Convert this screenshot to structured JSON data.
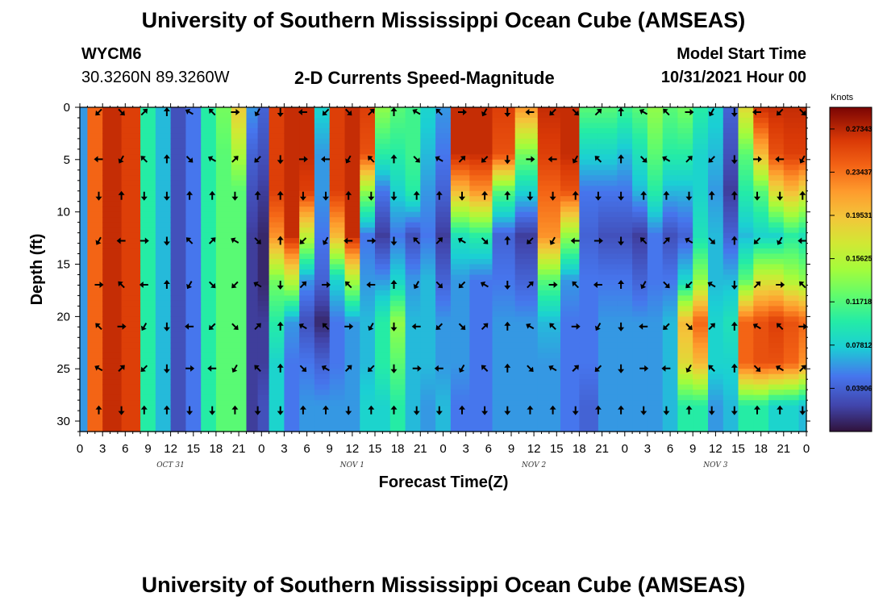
{
  "header": {
    "title": "University of Southern Mississippi Ocean Cube (AMSEAS)",
    "station_id": "WYCM6",
    "location": "30.3260N  89.3260W",
    "chart_title": "2-D Currents Speed-Magnitude",
    "model_start_label": "Model Start Time",
    "model_start_value": "10/31/2021 Hour 00",
    "footer_title": "University of Southern Mississippi Ocean Cube (AMSEAS)"
  },
  "chart_data": {
    "type": "heatmap",
    "title": "2-D Currents Speed-Magnitude",
    "xlabel": "Forecast Time(Z)",
    "ylabel": "Depth (ft)",
    "x_ticks": [
      "0",
      "3",
      "6",
      "9",
      "12",
      "15",
      "18",
      "21",
      "0",
      "3",
      "6",
      "9",
      "12",
      "15",
      "18",
      "21",
      "0",
      "3",
      "6",
      "9",
      "12",
      "15",
      "18",
      "21",
      "0",
      "3",
      "6",
      "9",
      "12",
      "15",
      "18",
      "21",
      "0"
    ],
    "day_labels": [
      "OCT 31",
      "NOV 1",
      "NOV 2",
      "NOV 3"
    ],
    "xlim": [
      0,
      96
    ],
    "y_ticks": [
      0,
      5,
      10,
      15,
      20,
      25,
      30
    ],
    "ylim": [
      0,
      31
    ],
    "colorbar": {
      "label": "Knots",
      "range": [
        0.0,
        0.293
      ],
      "ticks": [
        "0.27343",
        "0.23437",
        "0.19531",
        "0.15625",
        "0.11718",
        "0.07812",
        "0.03906"
      ],
      "tick_values": [
        0.27343,
        0.23437,
        0.19531,
        0.15625,
        0.11718,
        0.07812,
        0.03906
      ]
    },
    "arrow_depths_ft": [
      0,
      4.5,
      8,
      12.3,
      16.5,
      20.5,
      24.5,
      28.5
    ],
    "arrow_hours": [
      2.5,
      5.5,
      8.5,
      11.5,
      14.5,
      17.5,
      20.5,
      23.5,
      26.5,
      29.5,
      32.5,
      35.5,
      38.5,
      41.5,
      44.5,
      47.5,
      50.5,
      53.5,
      56.5,
      59.5,
      62.5,
      65.5,
      68.5,
      71.5,
      74.5,
      77.5,
      80.5,
      83.5,
      86.5,
      89.5,
      92.5,
      95.5
    ],
    "speed_columns": [
      {
        "hour": 0,
        "speeds": [
          0.06,
          0.06,
          0.06,
          0.06,
          0.06,
          0.06,
          0.06,
          0.06
        ]
      },
      {
        "hour": 2,
        "speeds": [
          0.24,
          0.24,
          0.24,
          0.24,
          0.24,
          0.24,
          0.24,
          0.24
        ]
      },
      {
        "hour": 4,
        "speeds": [
          0.27,
          0.27,
          0.27,
          0.27,
          0.27,
          0.27,
          0.27,
          0.27
        ]
      },
      {
        "hour": 7,
        "speeds": [
          0.26,
          0.26,
          0.26,
          0.26,
          0.26,
          0.26,
          0.26,
          0.26
        ]
      },
      {
        "hour": 9,
        "speeds": [
          0.1,
          0.1,
          0.1,
          0.1,
          0.1,
          0.1,
          0.1,
          0.1
        ]
      },
      {
        "hour": 11,
        "speeds": [
          0.07,
          0.07,
          0.07,
          0.07,
          0.07,
          0.07,
          0.07,
          0.07
        ]
      },
      {
        "hour": 13,
        "speeds": [
          0.03,
          0.03,
          0.03,
          0.03,
          0.03,
          0.03,
          0.03,
          0.03
        ]
      },
      {
        "hour": 15,
        "speeds": [
          0.05,
          0.05,
          0.05,
          0.05,
          0.05,
          0.05,
          0.05,
          0.05
        ]
      },
      {
        "hour": 17,
        "speeds": [
          0.1,
          0.1,
          0.1,
          0.1,
          0.1,
          0.1,
          0.1,
          0.1
        ]
      },
      {
        "hour": 19,
        "speeds": [
          0.13,
          0.12,
          0.12,
          0.12,
          0.12,
          0.12,
          0.12,
          0.12
        ]
      },
      {
        "hour": 21,
        "speeds": [
          0.19,
          0.15,
          0.12,
          0.12,
          0.12,
          0.12,
          0.12,
          0.12
        ]
      },
      {
        "hour": 23,
        "speeds": [
          0.06,
          0.04,
          0.03,
          0.02,
          0.02,
          0.02,
          0.02,
          0.02
        ]
      },
      {
        "hour": 24,
        "speeds": [
          0.04,
          0.03,
          0.02,
          0.01,
          0.01,
          0.02,
          0.02,
          0.03
        ]
      },
      {
        "hour": 26,
        "speeds": [
          0.26,
          0.26,
          0.26,
          0.22,
          0.13,
          0.1,
          0.08,
          0.08
        ]
      },
      {
        "hour": 28,
        "speeds": [
          0.27,
          0.27,
          0.27,
          0.27,
          0.16,
          0.06,
          0.05,
          0.05
        ]
      },
      {
        "hour": 30,
        "speeds": [
          0.27,
          0.27,
          0.26,
          0.16,
          0.06,
          0.03,
          0.05,
          0.06
        ]
      },
      {
        "hour": 32,
        "speeds": [
          0.08,
          0.06,
          0.06,
          0.05,
          0.04,
          0.01,
          0.04,
          0.06
        ]
      },
      {
        "hour": 34,
        "speeds": [
          0.26,
          0.26,
          0.26,
          0.2,
          0.08,
          0.05,
          0.05,
          0.06
        ]
      },
      {
        "hour": 36,
        "speeds": [
          0.27,
          0.27,
          0.27,
          0.27,
          0.15,
          0.06,
          0.06,
          0.06
        ]
      },
      {
        "hour": 38,
        "speeds": [
          0.26,
          0.25,
          0.14,
          0.05,
          0.06,
          0.07,
          0.07,
          0.08
        ]
      },
      {
        "hour": 40,
        "speeds": [
          0.14,
          0.1,
          0.05,
          0.02,
          0.06,
          0.1,
          0.1,
          0.08
        ]
      },
      {
        "hour": 42,
        "speeds": [
          0.12,
          0.1,
          0.08,
          0.05,
          0.08,
          0.14,
          0.12,
          0.1
        ]
      },
      {
        "hour": 44,
        "speeds": [
          0.11,
          0.11,
          0.1,
          0.03,
          0.06,
          0.07,
          0.07,
          0.07
        ]
      },
      {
        "hour": 46,
        "speeds": [
          0.08,
          0.07,
          0.06,
          0.05,
          0.07,
          0.07,
          0.07,
          0.06
        ]
      },
      {
        "hour": 48,
        "speeds": [
          0.06,
          0.05,
          0.04,
          0.02,
          0.04,
          0.06,
          0.06,
          0.07
        ]
      },
      {
        "hour": 50,
        "speeds": [
          0.27,
          0.27,
          0.2,
          0.09,
          0.06,
          0.06,
          0.06,
          0.05
        ]
      },
      {
        "hour": 53,
        "speeds": [
          0.27,
          0.27,
          0.22,
          0.1,
          0.05,
          0.05,
          0.05,
          0.05
        ]
      },
      {
        "hour": 56,
        "speeds": [
          0.26,
          0.25,
          0.12,
          0.04,
          0.05,
          0.06,
          0.06,
          0.06
        ]
      },
      {
        "hour": 59,
        "speeds": [
          0.22,
          0.13,
          0.08,
          0.02,
          0.04,
          0.06,
          0.06,
          0.06
        ]
      },
      {
        "hour": 62,
        "speeds": [
          0.27,
          0.26,
          0.24,
          0.22,
          0.12,
          0.07,
          0.06,
          0.06
        ]
      },
      {
        "hour": 65,
        "speeds": [
          0.27,
          0.27,
          0.25,
          0.14,
          0.06,
          0.05,
          0.05,
          0.05
        ]
      },
      {
        "hour": 67,
        "speeds": [
          0.12,
          0.08,
          0.05,
          0.04,
          0.05,
          0.05,
          0.05,
          0.04
        ]
      },
      {
        "hour": 70,
        "speeds": [
          0.12,
          0.08,
          0.05,
          0.03,
          0.05,
          0.06,
          0.06,
          0.06
        ]
      },
      {
        "hour": 72,
        "speeds": [
          0.11,
          0.07,
          0.05,
          0.03,
          0.05,
          0.06,
          0.06,
          0.06
        ]
      },
      {
        "hour": 74,
        "speeds": [
          0.12,
          0.09,
          0.07,
          0.02,
          0.04,
          0.06,
          0.06,
          0.06
        ]
      },
      {
        "hour": 76,
        "speeds": [
          0.14,
          0.12,
          0.1,
          0.05,
          0.05,
          0.06,
          0.06,
          0.06
        ]
      },
      {
        "hour": 78,
        "speeds": [
          0.12,
          0.1,
          0.07,
          0.03,
          0.05,
          0.07,
          0.07,
          0.07
        ]
      },
      {
        "hour": 80,
        "speeds": [
          0.13,
          0.1,
          0.07,
          0.04,
          0.08,
          0.2,
          0.18,
          0.1
        ]
      },
      {
        "hour": 82,
        "speeds": [
          0.1,
          0.08,
          0.08,
          0.09,
          0.14,
          0.24,
          0.2,
          0.1
        ]
      },
      {
        "hour": 84,
        "speeds": [
          0.08,
          0.07,
          0.06,
          0.07,
          0.07,
          0.08,
          0.08,
          0.06
        ]
      },
      {
        "hour": 86,
        "speeds": [
          0.04,
          0.03,
          0.02,
          0.04,
          0.07,
          0.09,
          0.08,
          0.07
        ]
      },
      {
        "hour": 88,
        "speeds": [
          0.18,
          0.12,
          0.1,
          0.07,
          0.12,
          0.24,
          0.24,
          0.1
        ]
      },
      {
        "hour": 90,
        "speeds": [
          0.27,
          0.2,
          0.12,
          0.08,
          0.17,
          0.25,
          0.25,
          0.1
        ]
      },
      {
        "hour": 92,
        "speeds": [
          0.27,
          0.25,
          0.18,
          0.08,
          0.17,
          0.26,
          0.25,
          0.08
        ]
      },
      {
        "hour": 94,
        "speeds": [
          0.27,
          0.26,
          0.2,
          0.1,
          0.15,
          0.25,
          0.24,
          0.08
        ]
      },
      {
        "hour": 96,
        "speeds": [
          0.27,
          0.26,
          0.18,
          0.09,
          0.14,
          0.24,
          0.22,
          0.07
        ]
      }
    ]
  }
}
